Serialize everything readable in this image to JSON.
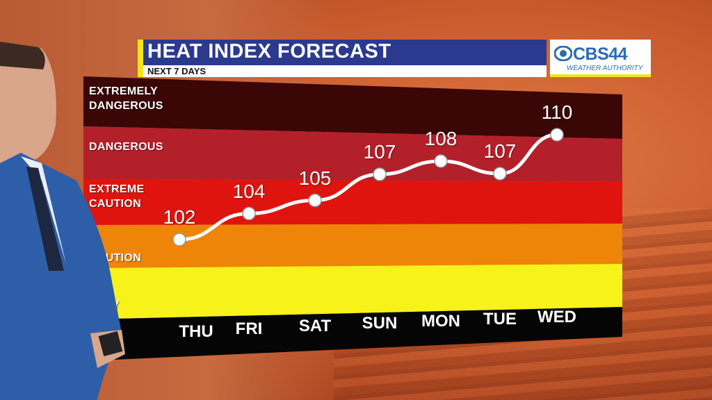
{
  "header": {
    "title": "HEAT INDEX FORECAST",
    "subtitle": "NEXT 7 DAYS"
  },
  "logo": {
    "brand": "CBS44",
    "tagline": "WEATHER AUTHORITY"
  },
  "zones": [
    {
      "label_lines": [
        "EXTREMELY",
        "DANGEROUS"
      ],
      "color": "#3a0606"
    },
    {
      "label_lines": [
        "DANGEROUS"
      ],
      "color": "#b3202a"
    },
    {
      "label_lines": [
        "EXTREME",
        "CAUTION"
      ],
      "color": "#e0140f"
    },
    {
      "label_lines": [
        "CAUTION"
      ],
      "color": "#ee8408"
    },
    {
      "label_lines": [
        "RY"
      ],
      "color": "#f6f21a"
    }
  ],
  "chart_data": {
    "type": "line",
    "title": "HEAT INDEX FORECAST",
    "subtitle": "NEXT 7 DAYS",
    "categories": [
      "THU",
      "FRI",
      "SAT",
      "SUN",
      "MON",
      "TUE",
      "WED"
    ],
    "values": [
      102,
      104,
      105,
      107,
      108,
      107,
      110
    ],
    "line_color": "#ffffff",
    "xlabel": "",
    "ylabel": "",
    "grid": false
  },
  "colors": {
    "title_bar": "#2b3a8e",
    "accent": "#f2e51a",
    "day_band": "#050505"
  }
}
